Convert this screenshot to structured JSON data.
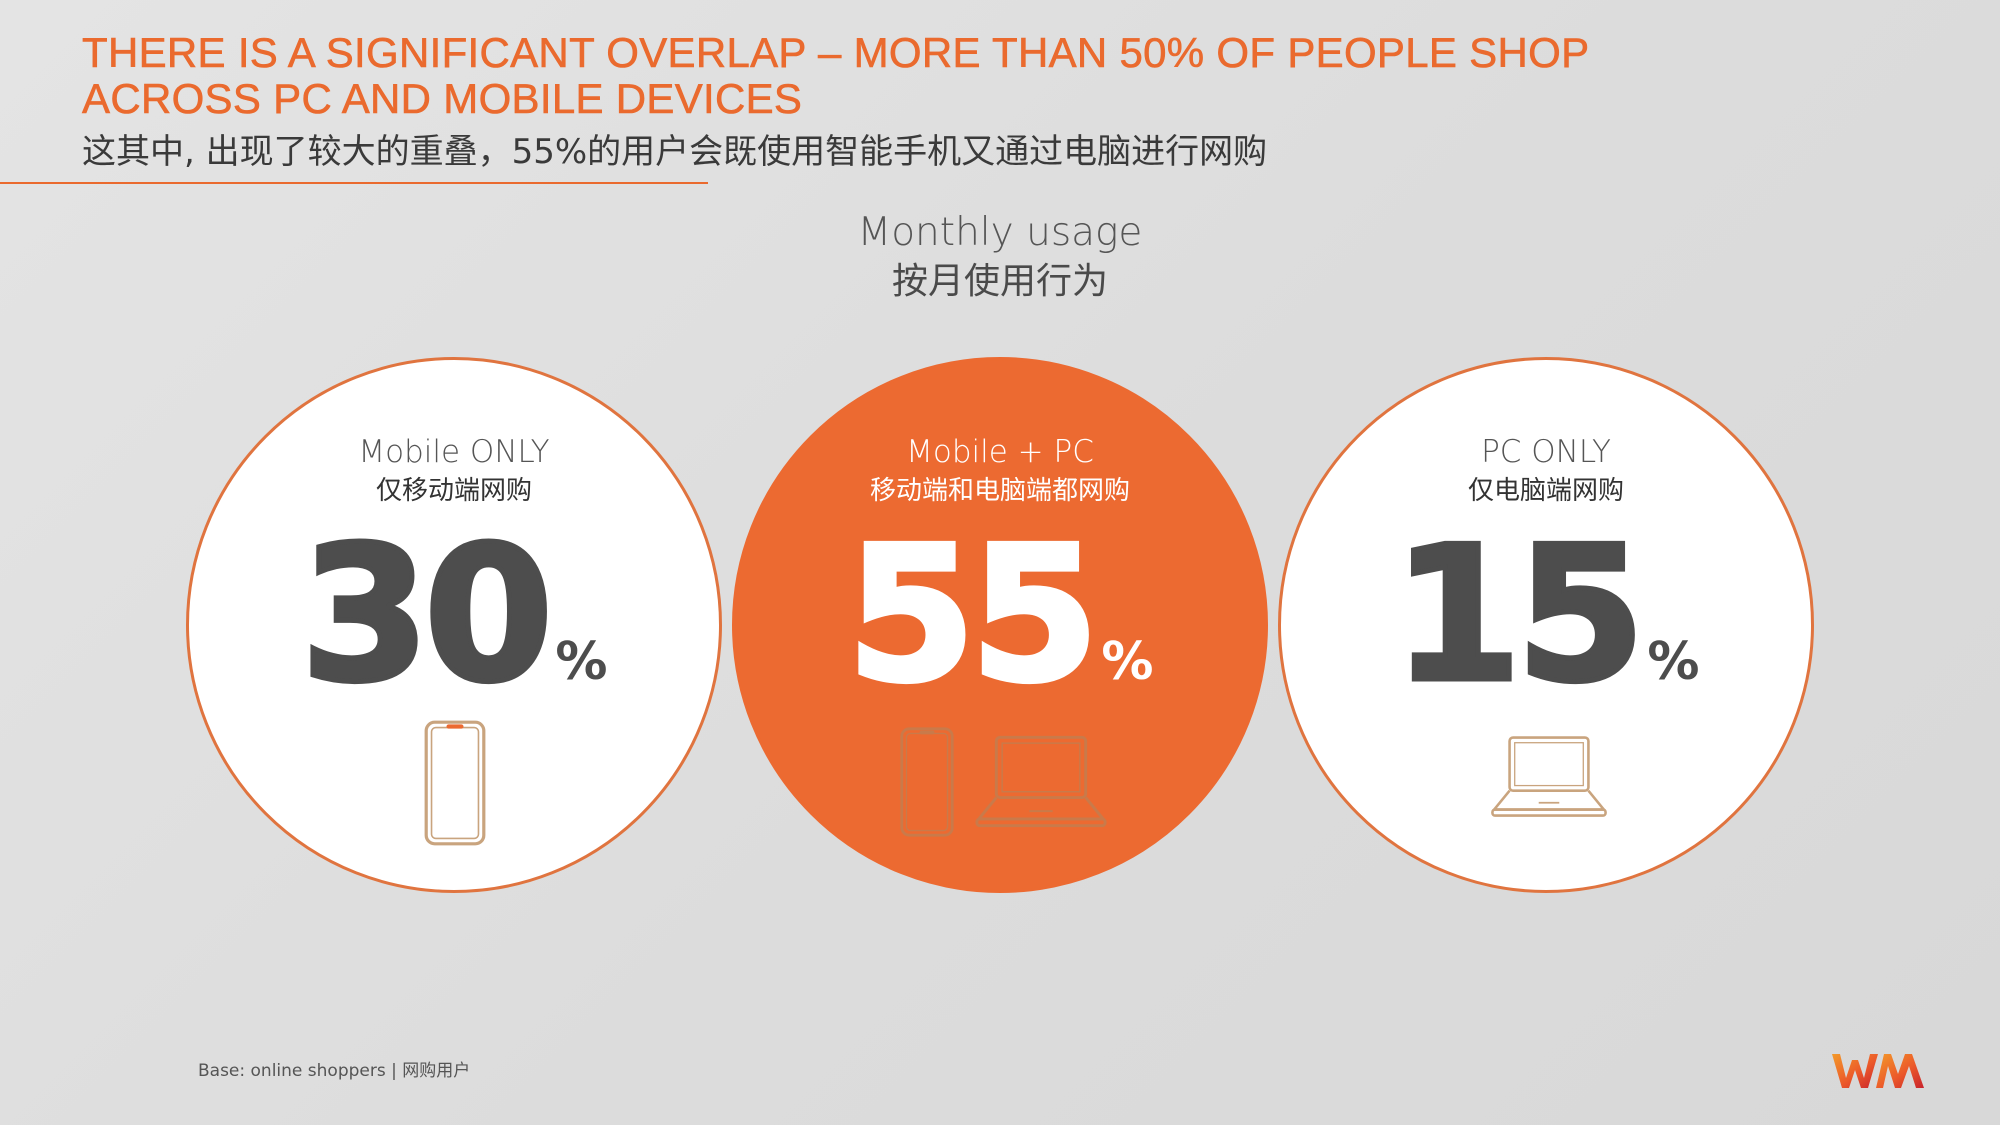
{
  "header": {
    "title": "THERE IS A SIGNIFICANT OVERLAP – MORE THAN 50% OF PEOPLE SHOP ACROSS PC AND MOBILE DEVICES",
    "subtitle_cn": "这其中, 出现了较大的重叠，55%的用户会既使用智能手机又通过电脑进行网购"
  },
  "chart_header": {
    "title": "Monthly usage",
    "title_cn": "按月使用行为"
  },
  "chart_data": {
    "type": "table",
    "title": "Monthly usage",
    "subtitle": "按月使用行为",
    "unit": "%",
    "categories": [
      "Mobile ONLY",
      "Mobile + PC",
      "PC ONLY"
    ],
    "categories_cn": [
      "仅移动端网购",
      "移动端和电脑端都网购",
      "仅电脑端网购"
    ],
    "values": [
      30,
      55,
      15
    ],
    "display_values": [
      "30",
      "55",
      "15"
    ],
    "devices": [
      [
        "phone-icon"
      ],
      [
        "phone-icon",
        "laptop-icon"
      ],
      [
        "laptop-icon"
      ]
    ],
    "highlighted_index": 1
  },
  "footer": {
    "base_note": "Base: online shoppers | 网购用户"
  },
  "colors": {
    "accent": "#ec6a31",
    "title": "#ea6a2e",
    "number": "#4d4d4d",
    "device_outline": "#c9a47e",
    "background": "#dedede"
  },
  "logo": {
    "name": "wm-logo"
  }
}
